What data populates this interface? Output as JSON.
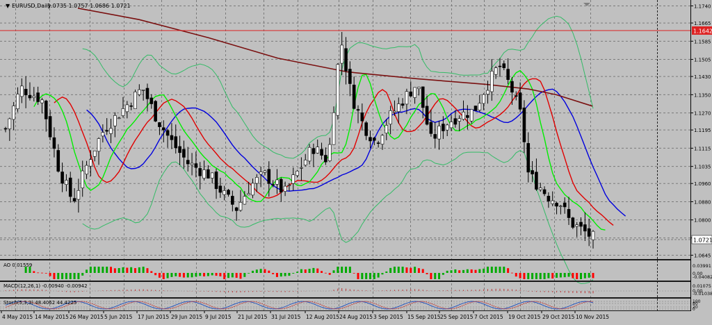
{
  "chart": {
    "symbol_title": "EURUSD,Daily",
    "ohlc_text": "1.0735 1.0757 1.0686 1.0721",
    "current_price_label": "1.0721",
    "hline_price_label": "1.1642"
  },
  "price_axis": {
    "ticks": [
      "1.1740",
      "1.1665",
      "1.1585",
      "1.1505",
      "1.1430",
      "1.1350",
      "1.1270",
      "1.1195",
      "1.1115",
      "1.1035",
      "1.0960",
      "1.0880",
      "1.0800",
      "1.0721",
      "1.0645"
    ]
  },
  "indicators": {
    "ao": {
      "label": "AO 0.01559",
      "ticks": [
        "0.03991",
        "0.00",
        "-0.04082"
      ]
    },
    "macd": {
      "label": "MACD(12,26,1) -0.00940 -0.00942",
      "ticks": [
        "0.01075",
        "0.00",
        "-0.01038"
      ]
    },
    "stoch": {
      "label": "Stoch(5,3,3) 48.4062 44.4225",
      "ticks": [
        "100",
        "80",
        "20",
        "0"
      ]
    }
  },
  "time_axis": {
    "labels": [
      "4 May 2015",
      "14 May 2015",
      "26 May 2015",
      "5 Jun 2015",
      "17 Jun 2015",
      "29 Jun 2015",
      "9 Jul 2015",
      "21 Jul 2015",
      "31 Jul 2015",
      "12 Aug 2015",
      "24 Aug 2015",
      "3 Sep 2015",
      "15 Sep 2015",
      "25 Sep 2015",
      "7 Oct 2015",
      "19 Oct 2015",
      "29 Oct 2015",
      "10 Nov 2015"
    ]
  },
  "colors": {
    "background": "#c0c0c0",
    "grid": "#7a7a7a",
    "bull_candle": "#ffffff",
    "bear_candle": "#000000",
    "ma_fast": "#00ee00",
    "ma_mid": "#e00000",
    "ma_slow": "#0000dd",
    "ma_long": "#7a1010",
    "bollinger": "#33bb66",
    "hline": "#dd2222",
    "ao_up": "#00aa00",
    "ao_down": "#ff0000"
  }
}
